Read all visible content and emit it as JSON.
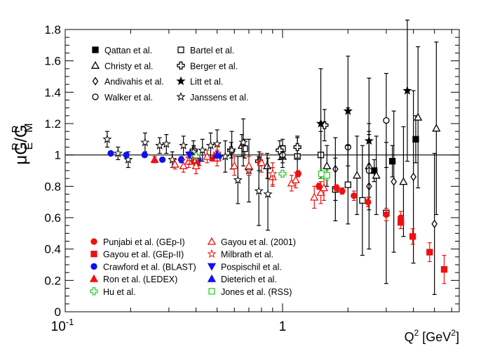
{
  "chart_data": {
    "type": "scatter",
    "xscale": "log",
    "xlim": [
      0.1,
      6.5
    ],
    "ylim": [
      0,
      1.8
    ],
    "xlabel": {
      "main": "Q",
      "sup": "2",
      "unit_open": " [GeV",
      "unit_sup": "2",
      "unit_close": "]"
    },
    "ylabel": {
      "mu": "μ",
      "g1": "G",
      "sup1": "P",
      "sub1": "E",
      "slash": "/",
      "g2": "G",
      "sup2": "P",
      "sub2": "M"
    },
    "reference_line": 1,
    "xticks": [
      {
        "value": 0.1,
        "base": "10",
        "exp": "-1"
      },
      {
        "value": 1,
        "text": "1"
      }
    ],
    "yticks": [
      "0",
      "0.2",
      "0.4",
      "0.6",
      "0.8",
      "1",
      "1.2",
      "1.4",
      "1.6",
      "1.8"
    ],
    "series": [
      {
        "name": "Qattan et al.",
        "marker": "square",
        "filled": true,
        "color": "#000000",
        "points": [
          [
            2.64,
            0.9,
            0.07
          ],
          [
            3.2,
            0.96,
            0.1
          ],
          [
            4.1,
            1.1,
            0.15
          ]
        ]
      },
      {
        "name": "Christy et al.",
        "marker": "triangle",
        "filled": false,
        "color": "#000000",
        "points": [
          [
            0.65,
            1.06,
            0.07
          ],
          [
            0.85,
            0.93,
            0.08
          ],
          [
            1.0,
            0.99,
            0.07
          ],
          [
            1.6,
            0.93,
            0.13
          ],
          [
            2.2,
            0.87,
            0.25
          ],
          [
            2.5,
            0.93,
            0.2
          ],
          [
            2.7,
            0.87,
            0.25
          ],
          [
            3.6,
            0.83,
            0.35
          ],
          [
            4.2,
            1.24,
            0.45
          ],
          [
            5.1,
            1.17,
            0.55
          ]
        ]
      },
      {
        "name": "Andivahis et al.",
        "marker": "diamond",
        "filled": false,
        "color": "#000000",
        "points": [
          [
            1.75,
            0.91,
            0.2
          ],
          [
            2.5,
            0.8,
            0.4
          ],
          [
            3.25,
            0.83,
            0.45
          ],
          [
            4.0,
            0.86,
            0.55
          ],
          [
            5.0,
            0.56,
            0.45
          ]
        ]
      },
      {
        "name": "Walker et al.",
        "marker": "circle",
        "filled": false,
        "color": "#000000",
        "points": [
          [
            1.0,
            1.0,
            0.05
          ],
          [
            2.0,
            1.05,
            0.25
          ],
          [
            2.5,
            0.9,
            0.25
          ],
          [
            3.0,
            1.22,
            0.3
          ]
        ]
      },
      {
        "name": "Bartel et al.",
        "marker": "square",
        "filled": false,
        "color": "#000000",
        "points": [
          [
            0.67,
            1.04,
            0.06
          ],
          [
            1.0,
            1.04,
            0.06
          ],
          [
            1.17,
            0.99,
            0.12
          ],
          [
            1.5,
            1.0,
            0.15
          ],
          [
            1.75,
            0.78,
            0.2
          ],
          [
            2.0,
            0.81,
            0.25
          ],
          [
            2.33,
            0.71,
            0.35
          ],
          [
            3.0,
            0.63,
            0.45
          ]
        ]
      },
      {
        "name": "Berger et al.",
        "marker": "cross",
        "filled": false,
        "color": "#000000",
        "points": [
          [
            0.39,
            1.03,
            0.03
          ],
          [
            0.58,
            1.03,
            0.05
          ],
          [
            0.78,
            0.96,
            0.06
          ],
          [
            0.97,
            1.03,
            0.06
          ],
          [
            1.17,
            1.05,
            0.07
          ],
          [
            1.56,
            1.19,
            0.1
          ]
        ]
      },
      {
        "name": "Litt et al.",
        "marker": "star",
        "filled": true,
        "color": "#000000",
        "points": [
          [
            1.5,
            1.2,
            0.35
          ],
          [
            2.0,
            1.28,
            0.35
          ],
          [
            2.5,
            1.09,
            0.4
          ],
          [
            3.75,
            1.41,
            0.45
          ]
        ]
      },
      {
        "name": "Janssens et al.",
        "marker": "star",
        "filled": false,
        "color": "#000000",
        "points": [
          [
            0.156,
            1.1,
            0.05
          ],
          [
            0.175,
            1.01,
            0.04
          ],
          [
            0.195,
            0.97,
            0.05
          ],
          [
            0.233,
            1.08,
            0.06
          ],
          [
            0.272,
            1.06,
            0.05
          ],
          [
            0.292,
            1.07,
            0.06
          ],
          [
            0.311,
            0.97,
            0.05
          ],
          [
            0.35,
            1.06,
            0.06
          ],
          [
            0.389,
            1.02,
            0.07
          ],
          [
            0.428,
            1.03,
            0.07
          ],
          [
            0.467,
            1.06,
            0.08
          ],
          [
            0.5,
            1.07,
            0.09
          ],
          [
            0.545,
            0.99,
            0.1
          ],
          [
            0.584,
            1.03,
            0.12
          ],
          [
            0.623,
            0.84,
            0.15
          ],
          [
            0.66,
            1.08,
            0.15
          ],
          [
            0.7,
            0.9,
            0.2
          ],
          [
            0.778,
            0.77,
            0.22
          ],
          [
            0.856,
            0.75,
            0.23
          ]
        ]
      },
      {
        "name": "Punjabi et al. (GEp-I)",
        "marker": "circle",
        "filled": true,
        "color": "#ee1111",
        "points": [
          [
            0.49,
            0.99,
            0.02
          ],
          [
            0.79,
            0.95,
            0.02
          ],
          [
            1.18,
            0.88,
            0.02
          ],
          [
            1.47,
            0.8,
            0.02
          ],
          [
            1.77,
            0.79,
            0.02
          ],
          [
            1.88,
            0.77,
            0.02
          ],
          [
            2.13,
            0.74,
            0.03
          ],
          [
            2.47,
            0.7,
            0.03
          ],
          [
            3.0,
            0.62,
            0.04
          ],
          [
            3.5,
            0.6,
            0.04
          ]
        ]
      },
      {
        "name": "Gayou et al. (GEp-II)",
        "marker": "square",
        "filled": true,
        "color": "#ee1111",
        "points": [
          [
            3.5,
            0.57,
            0.04
          ],
          [
            3.97,
            0.48,
            0.05
          ],
          [
            4.75,
            0.38,
            0.06
          ],
          [
            5.54,
            0.27,
            0.09
          ]
        ]
      },
      {
        "name": "Crawford et al. (BLAST)",
        "marker": "circle",
        "filled": true,
        "color": "#1111ee",
        "points": [
          [
            0.162,
            1.01,
            0.01
          ],
          [
            0.191,
            1.0,
            0.01
          ],
          [
            0.232,
            1.0,
            0.01
          ],
          [
            0.28,
            0.97,
            0.01
          ],
          [
            0.342,
            0.97,
            0.02
          ],
          [
            0.41,
            0.97,
            0.02
          ],
          [
            0.509,
            0.99,
            0.02
          ]
        ]
      },
      {
        "name": "Ron et al. (LEDEX)",
        "marker": "triangle",
        "filled": true,
        "color": "#ee1111",
        "points": [
          [
            0.258,
            0.97,
            0.02
          ],
          [
            0.38,
            0.96,
            0.02
          ],
          [
            0.405,
            0.95,
            0.02
          ],
          [
            0.48,
            0.98,
            0.02
          ]
        ]
      },
      {
        "name": "Hu et al.",
        "marker": "cross",
        "filled": false,
        "color": "#33cc33",
        "points": [
          [
            0.4,
            0.99,
            0.02
          ],
          [
            1.0,
            0.88,
            0.02
          ]
        ]
      },
      {
        "name": "Gayou et al. (2001)",
        "marker": "triangle",
        "filled": false,
        "color": "#ee1111",
        "points": [
          [
            0.32,
            0.94,
            0.03
          ],
          [
            0.35,
            0.93,
            0.04
          ],
          [
            0.37,
            0.96,
            0.04
          ],
          [
            0.4,
            0.93,
            0.05
          ],
          [
            0.45,
            0.99,
            0.04
          ],
          [
            0.5,
            0.98,
            0.05
          ],
          [
            0.6,
            0.93,
            0.06
          ],
          [
            0.7,
            0.93,
            0.06
          ],
          [
            0.8,
            0.95,
            0.06
          ],
          [
            0.9,
            0.86,
            0.06
          ],
          [
            1.1,
            0.82,
            0.05
          ],
          [
            1.15,
            0.84,
            0.05
          ],
          [
            1.4,
            0.73,
            0.07
          ],
          [
            1.5,
            0.76,
            0.07
          ],
          [
            1.55,
            0.79,
            0.08
          ]
        ]
      },
      {
        "name": "Milbrath et al.",
        "marker": "star",
        "filled": false,
        "color": "#ee1111",
        "points": [
          [
            0.373,
            0.98,
            0.04
          ],
          [
            0.5,
            1.01,
            0.05
          ],
          [
            0.9,
            0.88,
            0.07
          ]
        ]
      },
      {
        "name": "Pospischil et al.",
        "marker": "triangle-down",
        "filled": true,
        "color": "#1111ee",
        "points": [
          [
            0.373,
            1.0,
            0.02
          ]
        ]
      },
      {
        "name": "Dieterich et al.",
        "marker": "triangle",
        "filled": true,
        "color": "#1111ee",
        "points": [
          [
            0.5,
            1.0,
            0.02
          ]
        ]
      },
      {
        "name": "Jones et al. (RSS)",
        "marker": "square",
        "filled": false,
        "color": "#33cc33",
        "points": [
          [
            1.51,
            0.88,
            0.03
          ],
          [
            1.6,
            0.87,
            0.03
          ]
        ]
      }
    ],
    "legend_top": [
      "Qattan et al.",
      "Bartel et al.",
      "Christy et al.",
      "Berger et al.",
      "Andivahis et al.",
      "Litt et al.",
      "Walker et al.",
      "Janssens et al."
    ],
    "legend_bottom": [
      "Punjabi et al. (GEp-I)",
      "Gayou et al. (2001)",
      "Gayou et al. (GEp-II)",
      "Milbrath et al.",
      "Crawford et al. (BLAST)",
      "Pospischil et al.",
      "Ron et al. (LEDEX)",
      "Dieterich et al.",
      "Hu et al.",
      "Jones et al. (RSS)"
    ]
  }
}
